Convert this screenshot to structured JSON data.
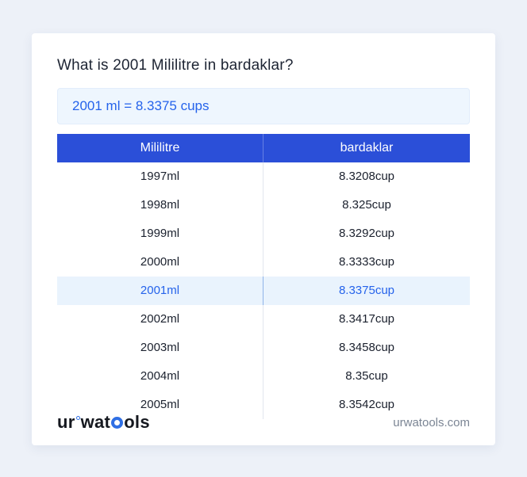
{
  "header": {
    "title": "What is 2001 Mililitre in bardaklar?"
  },
  "result_box": {
    "text": "2001 ml = 8.3375 cups"
  },
  "table": {
    "columns": [
      "Mililitre",
      "bardaklar"
    ],
    "rows": [
      {
        "ml": "1997ml",
        "cups": "8.3208cup"
      },
      {
        "ml": "1998ml",
        "cups": "8.325cup"
      },
      {
        "ml": "1999ml",
        "cups": "8.3292cup"
      },
      {
        "ml": "2000ml",
        "cups": "8.3333cup"
      },
      {
        "ml": "2001ml",
        "cups": "8.3375cup"
      },
      {
        "ml": "2002ml",
        "cups": "8.3417cup"
      },
      {
        "ml": "2003ml",
        "cups": "8.3458cup"
      },
      {
        "ml": "2004ml",
        "cups": "8.35cup"
      },
      {
        "ml": "2005ml",
        "cups": "8.3542cup"
      }
    ],
    "highlighted_row_value": "2001ml"
  },
  "footer": {
    "logo": {
      "prefix": "ur",
      "mid": "wat",
      "suffix": "ols"
    },
    "domain": "urwatools.com"
  },
  "colors": {
    "header_blue": "#2b4fd8",
    "link_blue": "#2563eb",
    "highlight_row_bg": "#e9f3fd",
    "result_box_bg": "#eef6fe",
    "page_bg": "#edf1f8"
  }
}
